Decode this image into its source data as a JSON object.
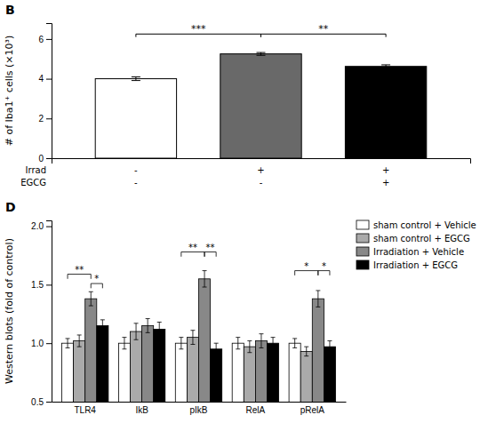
{
  "chart_data": [
    {
      "type": "bar",
      "title": "B",
      "categories": [
        null,
        null,
        null
      ],
      "values": [
        4.0,
        5.25,
        4.62
      ],
      "errors": [
        0.09,
        0.07,
        0.08
      ],
      "colors": [
        "white",
        "dimgray",
        "black"
      ],
      "ylabel": "# of Iba1⁺ cells (×10³)",
      "ylim": [
        0,
        6.8
      ],
      "yticks": [
        0,
        2,
        4,
        6
      ],
      "grid": false,
      "x_label_rows": [
        {
          "label": "Irrad",
          "labels": [
            "-",
            "+",
            "+"
          ]
        },
        {
          "label": "EGCG",
          "labels": [
            "-",
            "-",
            "+"
          ]
        }
      ],
      "brackets": [
        {
          "x1": 0,
          "x2": 1,
          "y": 6.1,
          "h": 0.15,
          "label": "***"
        },
        {
          "x1": 1,
          "x2": 2,
          "y": 6.1,
          "h": 0.15,
          "label": "**"
        }
      ]
    },
    {
      "type": "bar",
      "title": "D",
      "categories": [
        "TLR4",
        "IkB",
        "pIkB",
        "RelA",
        "pRelA"
      ],
      "series": [
        {
          "name": "sham control + Vehicle",
          "color": "white",
          "values": [
            1.0,
            1.0,
            1.0,
            1.0,
            1.0
          ],
          "errors": [
            0.04,
            0.05,
            0.05,
            0.05,
            0.04
          ]
        },
        {
          "name": "sham control + EGCG",
          "color": "#aaaaaa",
          "values": [
            1.02,
            1.1,
            1.05,
            0.97,
            0.93
          ],
          "errors": [
            0.05,
            0.07,
            0.06,
            0.05,
            0.04
          ]
        },
        {
          "name": "Irradiation + Vehicle",
          "color": "#888888",
          "values": [
            1.38,
            1.15,
            1.55,
            1.02,
            1.38
          ],
          "errors": [
            0.06,
            0.06,
            0.07,
            0.06,
            0.07
          ]
        },
        {
          "name": "Irradiation + EGCG",
          "color": "black",
          "values": [
            1.15,
            1.12,
            0.95,
            1.0,
            0.97
          ],
          "errors": [
            0.05,
            0.06,
            0.05,
            0.05,
            0.05
          ]
        }
      ],
      "ylabel": "Western blots (fold of control)",
      "ylim": [
        0.5,
        2.05
      ],
      "yticks": [
        0.5,
        {
          "value": 1.0,
          "label": "1.0"
        },
        1.5,
        {
          "value": 2.0,
          "label": "2.0"
        }
      ],
      "grid": false,
      "legend": "upper right",
      "brackets": [
        {
          "group": 0,
          "bar1": 0,
          "bar2": 2,
          "y": 1.55,
          "h": 0.04,
          "label": "**"
        },
        {
          "group": 0,
          "bar1": 2,
          "bar2": 3,
          "y": 1.47,
          "h": 0.04,
          "label": "*"
        },
        {
          "group": 2,
          "bar1": 0,
          "bar2": 2,
          "y": 1.74,
          "h": 0.04,
          "label": "**"
        },
        {
          "group": 2,
          "bar1": 2,
          "bar2": 3,
          "y": 1.74,
          "h": 0.04,
          "label": "**"
        },
        {
          "group": 4,
          "bar1": 0,
          "bar2": 2,
          "y": 1.58,
          "h": 0.04,
          "label": "*"
        },
        {
          "group": 4,
          "bar1": 2,
          "bar2": 3,
          "y": 1.58,
          "h": 0.04,
          "label": "*"
        }
      ]
    }
  ]
}
